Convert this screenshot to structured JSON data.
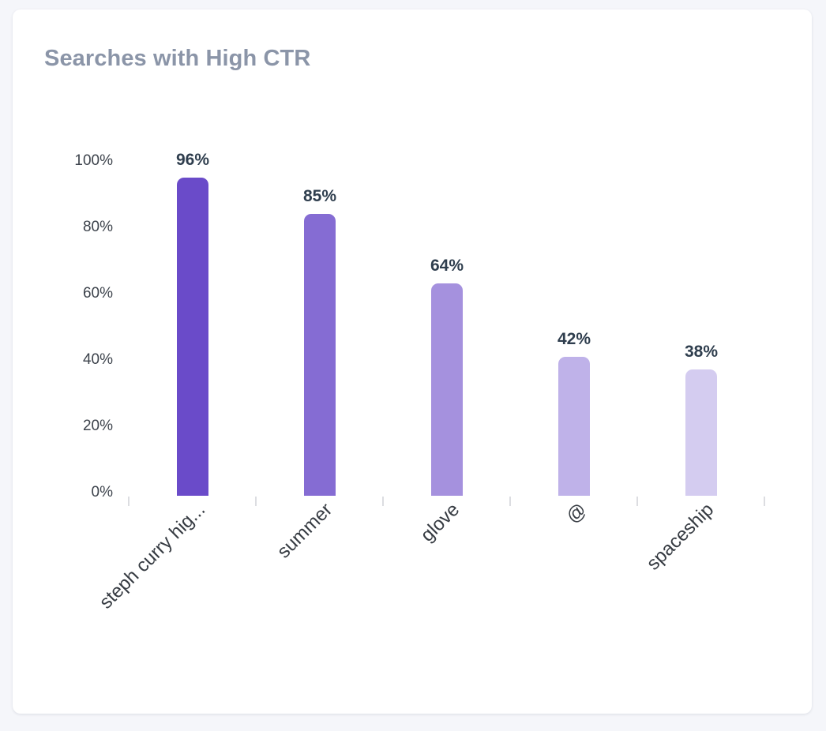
{
  "card": {
    "title": "Searches with High CTR"
  },
  "chart_data": {
    "type": "bar",
    "title": "Searches with High CTR",
    "xlabel": "",
    "ylabel": "",
    "categories": [
      "steph curry hig...",
      "summer",
      "glove",
      "@",
      "spaceship"
    ],
    "values": [
      96,
      85,
      64,
      42,
      38
    ],
    "value_labels": [
      "96%",
      "85%",
      "64%",
      "42%",
      "38%"
    ],
    "colors": [
      "#6a4bc9",
      "#856cd3",
      "#a591de",
      "#bfb2e9",
      "#d4ccf0"
    ],
    "ylim": [
      0,
      100
    ],
    "yticks": [
      "0%",
      "20%",
      "40%",
      "60%",
      "80%",
      "100%"
    ],
    "grid": false,
    "legend": "none",
    "unit": "%"
  }
}
